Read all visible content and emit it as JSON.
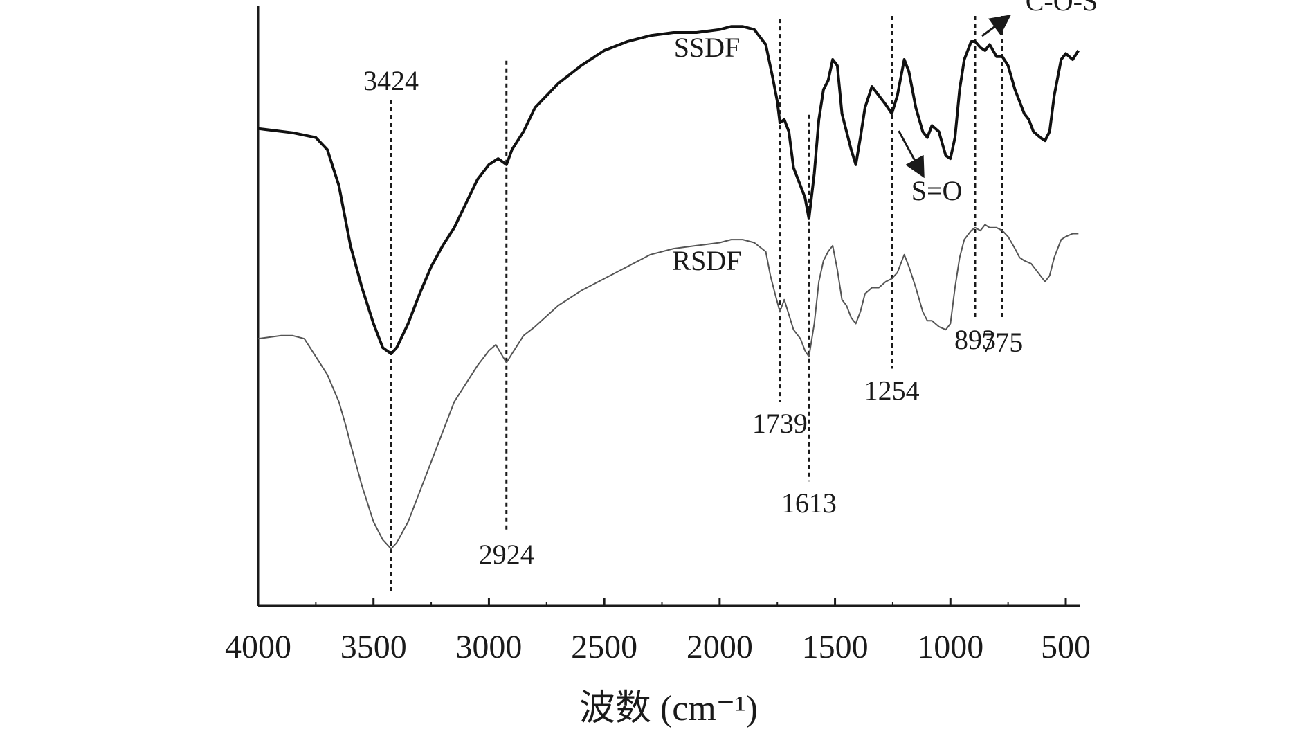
{
  "chart_data": {
    "type": "line",
    "title": "",
    "xlabel": "波数 (cm⁻¹)",
    "ylabel": "",
    "xlim": [
      4000,
      440
    ],
    "x_reversed": true,
    "x_ticks": [
      4000,
      3500,
      3000,
      2500,
      2000,
      1500,
      1000,
      500
    ],
    "x_tick_labels": [
      "4000",
      "3500",
      "3000",
      "2500",
      "2000",
      "1500",
      "1000",
      "500"
    ],
    "y_axis_shown_without_ticks": true,
    "grid": false,
    "legend": "none (series labelled inline)",
    "series_note": "Relative transmittance in arbitrary units (0 = bottom axis, 100 = top of plot)",
    "series": [
      {
        "name": "SSDF",
        "color": "#111111",
        "points": [
          [
            4000,
            79.5
          ],
          [
            3850,
            78.8
          ],
          [
            3750,
            78.0
          ],
          [
            3700,
            76.0
          ],
          [
            3650,
            70.0
          ],
          [
            3600,
            60.0
          ],
          [
            3550,
            53.0
          ],
          [
            3500,
            47.0
          ],
          [
            3460,
            43.0
          ],
          [
            3424,
            42.0
          ],
          [
            3400,
            43.0
          ],
          [
            3350,
            47.0
          ],
          [
            3300,
            52.0
          ],
          [
            3250,
            56.5
          ],
          [
            3200,
            60.0
          ],
          [
            3150,
            63.0
          ],
          [
            3100,
            67.0
          ],
          [
            3050,
            71.0
          ],
          [
            3000,
            73.5
          ],
          [
            2960,
            74.5
          ],
          [
            2924,
            73.5
          ],
          [
            2900,
            76.0
          ],
          [
            2850,
            79.0
          ],
          [
            2800,
            83.0
          ],
          [
            2700,
            87.0
          ],
          [
            2600,
            90.0
          ],
          [
            2500,
            92.5
          ],
          [
            2400,
            94.0
          ],
          [
            2300,
            95.0
          ],
          [
            2200,
            95.5
          ],
          [
            2100,
            95.5
          ],
          [
            2000,
            96.0
          ],
          [
            1950,
            96.5
          ],
          [
            1900,
            96.5
          ],
          [
            1850,
            96.0
          ],
          [
            1800,
            93.5
          ],
          [
            1770,
            88.0
          ],
          [
            1750,
            84.0
          ],
          [
            1739,
            80.5
          ],
          [
            1720,
            81.0
          ],
          [
            1700,
            79.0
          ],
          [
            1680,
            73.0
          ],
          [
            1650,
            70.0
          ],
          [
            1630,
            68.0
          ],
          [
            1613,
            64.5
          ],
          [
            1590,
            72.0
          ],
          [
            1570,
            81.0
          ],
          [
            1550,
            86.0
          ],
          [
            1530,
            87.5
          ],
          [
            1510,
            91.0
          ],
          [
            1490,
            90.0
          ],
          [
            1470,
            82.0
          ],
          [
            1450,
            79.0
          ],
          [
            1430,
            76.0
          ],
          [
            1410,
            73.5
          ],
          [
            1390,
            78.0
          ],
          [
            1370,
            83.0
          ],
          [
            1340,
            86.5
          ],
          [
            1310,
            85.0
          ],
          [
            1280,
            83.5
          ],
          [
            1254,
            82.0
          ],
          [
            1230,
            85.0
          ],
          [
            1200,
            91.0
          ],
          [
            1180,
            89.0
          ],
          [
            1150,
            83.0
          ],
          [
            1120,
            79.0
          ],
          [
            1100,
            78.0
          ],
          [
            1080,
            80.0
          ],
          [
            1050,
            79.0
          ],
          [
            1020,
            75.0
          ],
          [
            1000,
            74.5
          ],
          [
            980,
            78.0
          ],
          [
            960,
            86.0
          ],
          [
            940,
            91.0
          ],
          [
            910,
            94.0
          ],
          [
            893,
            94.0
          ],
          [
            870,
            93.0
          ],
          [
            850,
            92.5
          ],
          [
            830,
            93.5
          ],
          [
            800,
            91.5
          ],
          [
            775,
            91.5
          ],
          [
            750,
            90.0
          ],
          [
            720,
            86.0
          ],
          [
            700,
            84.0
          ],
          [
            680,
            82.0
          ],
          [
            660,
            81.0
          ],
          [
            640,
            79.0
          ],
          [
            610,
            78.0
          ],
          [
            590,
            77.5
          ],
          [
            570,
            79.0
          ],
          [
            550,
            85.0
          ],
          [
            520,
            91.0
          ],
          [
            500,
            92.0
          ],
          [
            470,
            91.0
          ],
          [
            445,
            92.5
          ]
        ]
      },
      {
        "name": "RSDF",
        "color": "#555555",
        "points": [
          [
            4000,
            44.5
          ],
          [
            3900,
            45.0
          ],
          [
            3850,
            45.0
          ],
          [
            3800,
            44.5
          ],
          [
            3750,
            41.5
          ],
          [
            3700,
            38.5
          ],
          [
            3650,
            34.0
          ],
          [
            3620,
            30.0
          ],
          [
            3600,
            27.0
          ],
          [
            3550,
            20.0
          ],
          [
            3500,
            14.0
          ],
          [
            3460,
            11.0
          ],
          [
            3424,
            9.5
          ],
          [
            3400,
            10.5
          ],
          [
            3350,
            14.0
          ],
          [
            3300,
            19.0
          ],
          [
            3250,
            24.0
          ],
          [
            3200,
            29.0
          ],
          [
            3150,
            34.0
          ],
          [
            3100,
            37.0
          ],
          [
            3050,
            40.0
          ],
          [
            3000,
            42.5
          ],
          [
            2970,
            43.5
          ],
          [
            2924,
            40.5
          ],
          [
            2900,
            42.0
          ],
          [
            2850,
            45.0
          ],
          [
            2800,
            46.5
          ],
          [
            2700,
            50.0
          ],
          [
            2600,
            52.5
          ],
          [
            2500,
            54.5
          ],
          [
            2400,
            56.5
          ],
          [
            2300,
            58.5
          ],
          [
            2200,
            59.5
          ],
          [
            2100,
            60.0
          ],
          [
            2000,
            60.5
          ],
          [
            1950,
            61.0
          ],
          [
            1900,
            61.0
          ],
          [
            1850,
            60.5
          ],
          [
            1800,
            59.0
          ],
          [
            1780,
            55.0
          ],
          [
            1760,
            52.0
          ],
          [
            1739,
            49.0
          ],
          [
            1720,
            51.0
          ],
          [
            1700,
            48.5
          ],
          [
            1680,
            46.0
          ],
          [
            1650,
            44.5
          ],
          [
            1630,
            42.5
          ],
          [
            1613,
            41.5
          ],
          [
            1590,
            47.0
          ],
          [
            1570,
            54.0
          ],
          [
            1550,
            57.5
          ],
          [
            1530,
            59.0
          ],
          [
            1510,
            60.0
          ],
          [
            1490,
            56.0
          ],
          [
            1470,
            51.0
          ],
          [
            1450,
            50.0
          ],
          [
            1430,
            48.0
          ],
          [
            1410,
            47.0
          ],
          [
            1390,
            49.0
          ],
          [
            1370,
            52.0
          ],
          [
            1340,
            53.0
          ],
          [
            1310,
            53.0
          ],
          [
            1280,
            54.0
          ],
          [
            1254,
            54.5
          ],
          [
            1230,
            55.5
          ],
          [
            1200,
            58.5
          ],
          [
            1180,
            56.5
          ],
          [
            1150,
            53.0
          ],
          [
            1120,
            49.0
          ],
          [
            1100,
            47.5
          ],
          [
            1080,
            47.5
          ],
          [
            1050,
            46.5
          ],
          [
            1020,
            46.0
          ],
          [
            1000,
            47.0
          ],
          [
            980,
            53.0
          ],
          [
            960,
            58.0
          ],
          [
            940,
            61.0
          ],
          [
            910,
            62.5
          ],
          [
            893,
            63.0
          ],
          [
            870,
            62.5
          ],
          [
            850,
            63.5
          ],
          [
            830,
            63.0
          ],
          [
            800,
            63.0
          ],
          [
            775,
            62.5
          ],
          [
            750,
            61.5
          ],
          [
            720,
            59.5
          ],
          [
            700,
            58.0
          ],
          [
            680,
            57.5
          ],
          [
            650,
            57.0
          ],
          [
            620,
            55.5
          ],
          [
            590,
            54.0
          ],
          [
            570,
            55.0
          ],
          [
            550,
            58.0
          ],
          [
            520,
            61.0
          ],
          [
            500,
            61.5
          ],
          [
            470,
            62.0
          ],
          [
            445,
            62.0
          ]
        ]
      }
    ],
    "peak_markers": [
      {
        "wavenumber": 3424,
        "label": "3424",
        "label_side": "top"
      },
      {
        "wavenumber": 2924,
        "label": "2924",
        "label_side": "bottom"
      },
      {
        "wavenumber": 1739,
        "label": "1739",
        "label_side": "bottom"
      },
      {
        "wavenumber": 1613,
        "label": "1613",
        "label_side": "bottom"
      },
      {
        "wavenumber": 1254,
        "label": "1254",
        "label_side": "bottom"
      },
      {
        "wavenumber": 893,
        "label": "893",
        "label_side": "bottom"
      },
      {
        "wavenumber": 775,
        "label": "775",
        "label_side": "bottom"
      }
    ],
    "annotations": [
      {
        "text": "S=O",
        "points_to_wavenumber": 1254
      },
      {
        "text": "C-O-S",
        "points_to_wavenumber": 893
      }
    ]
  }
}
